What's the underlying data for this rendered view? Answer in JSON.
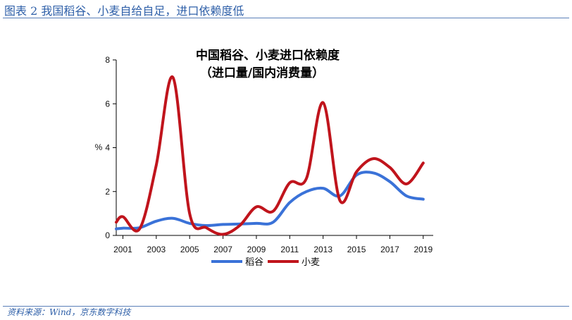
{
  "figure": {
    "title": "图表 2  我国稻谷、小麦自给自足，进口依赖度低",
    "source": "资料来源：Wind，京东数字科技"
  },
  "chart_data": {
    "type": "line",
    "title": "中国稻谷、小麦进口依赖度",
    "subtitle": "（进口量/国内消费量）",
    "ylabel": "%",
    "xlabel": "",
    "xlim": [
      2000.6,
      2019.6
    ],
    "ylim": [
      0,
      8
    ],
    "yticks": [
      0,
      2,
      4,
      6,
      8
    ],
    "xticks": [
      2001,
      2003,
      2005,
      2007,
      2009,
      2011,
      2013,
      2015,
      2017,
      2019
    ],
    "grid": false,
    "legend": "bottom-center",
    "x": [
      2000.6,
      2001,
      2002,
      2003,
      2004,
      2005,
      2006,
      2007,
      2008,
      2009,
      2010,
      2011,
      2012,
      2013,
      2014,
      2015,
      2016,
      2017,
      2018,
      2019
    ],
    "series": [
      {
        "name": "稻谷",
        "color": "#3a72d8",
        "values": [
          0.3,
          0.33,
          0.35,
          0.65,
          0.78,
          0.55,
          0.45,
          0.5,
          0.52,
          0.55,
          0.6,
          1.5,
          2.0,
          2.15,
          1.8,
          2.75,
          2.85,
          2.45,
          1.8,
          1.65
        ]
      },
      {
        "name": "小麦",
        "color": "#c0141c",
        "values": [
          0.6,
          0.85,
          0.3,
          3.2,
          7.2,
          1.0,
          0.35,
          0.05,
          0.45,
          1.3,
          1.1,
          2.4,
          2.6,
          6.05,
          1.6,
          2.9,
          3.5,
          3.1,
          2.35,
          3.3
        ]
      }
    ]
  }
}
